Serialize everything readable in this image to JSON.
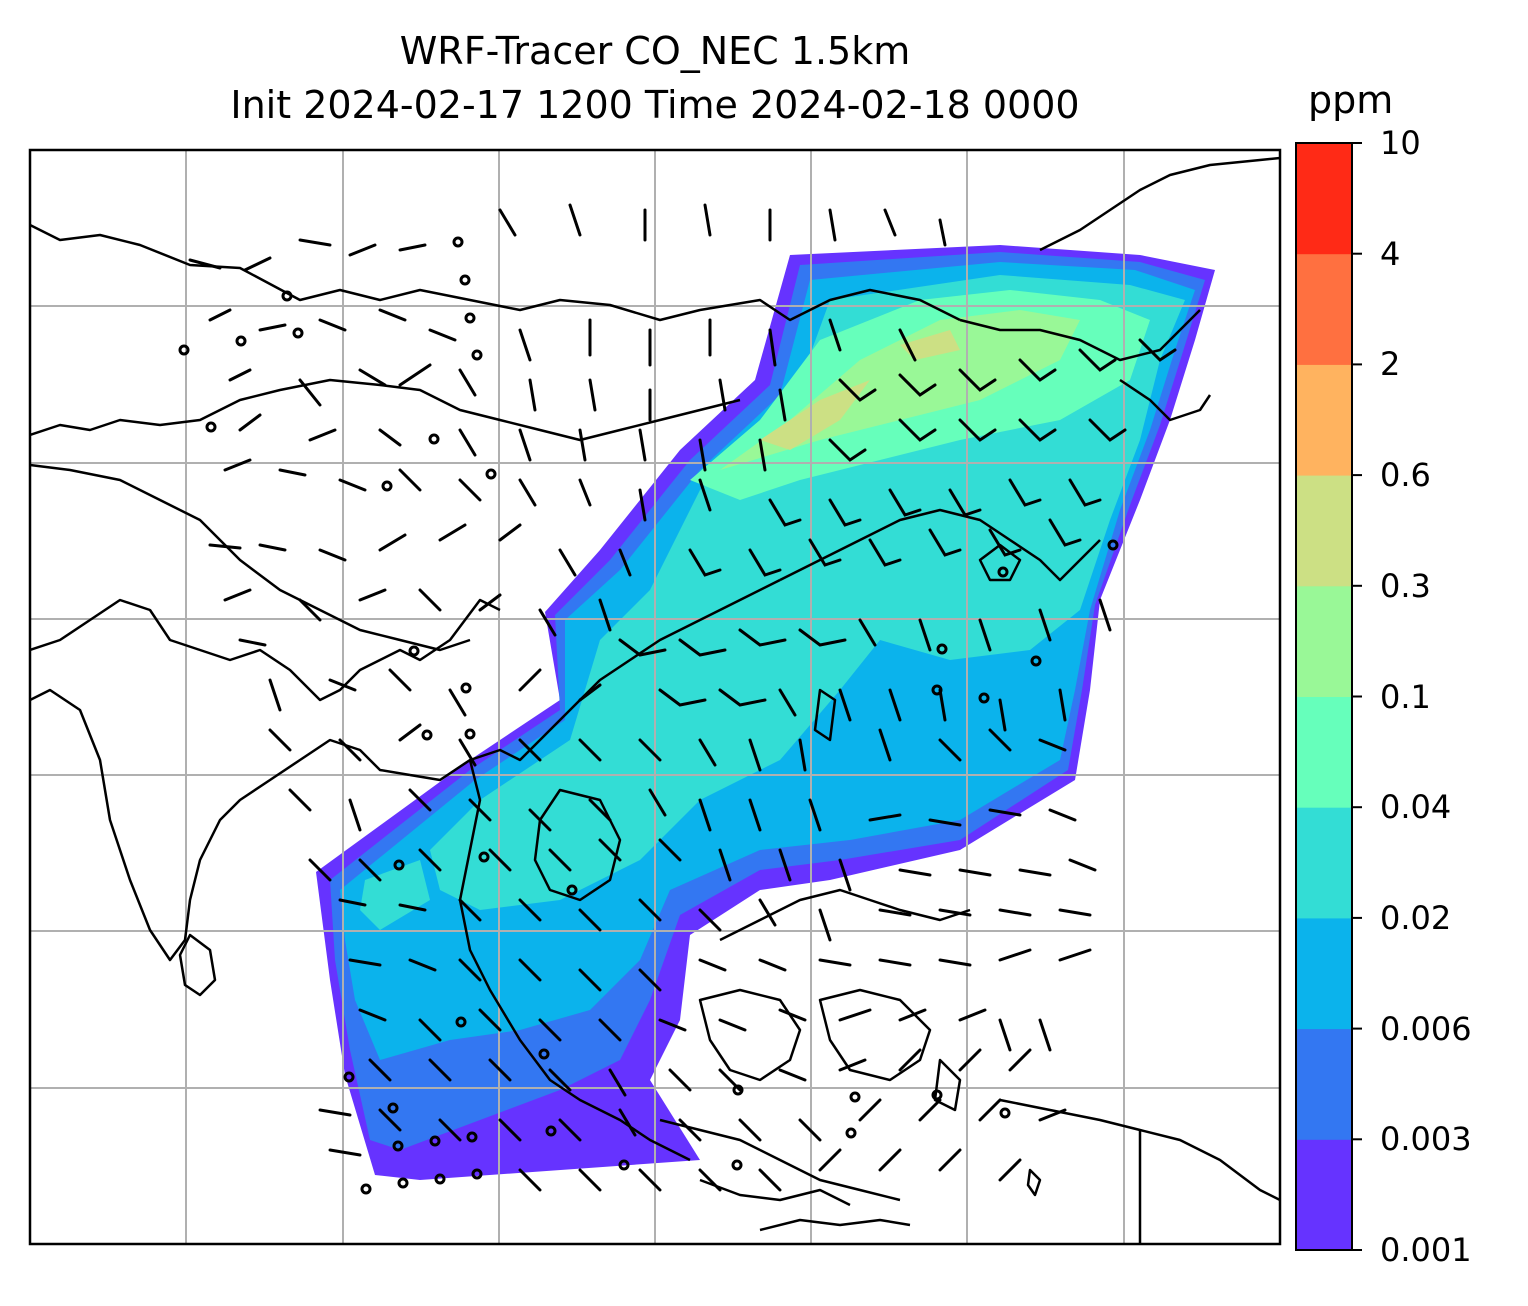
{
  "title_line1": "WRF-Tracer CO_NEC 1.5km",
  "title_line2": "Init 2024-02-17 1200 Time 2024-02-18 0000",
  "colorbar": {
    "label": "ppm",
    "levels": [
      "0.001",
      "0.003",
      "0.006",
      "0.02",
      "0.04",
      "0.1",
      "0.3",
      "0.6",
      "2",
      "4",
      "10"
    ],
    "colors": [
      "#6633ff",
      "#3377f2",
      "#0bb3ec",
      "#33ddd5",
      "#66ffbb",
      "#99f897",
      "#cce084",
      "#ffb35f",
      "#ff7040",
      "#ff2a16"
    ]
  },
  "map": {
    "field": "CO_NEC tracer concentration",
    "overlays": [
      "coastlines",
      "wind-barbs",
      "lat-lon-gridlines"
    ]
  }
}
